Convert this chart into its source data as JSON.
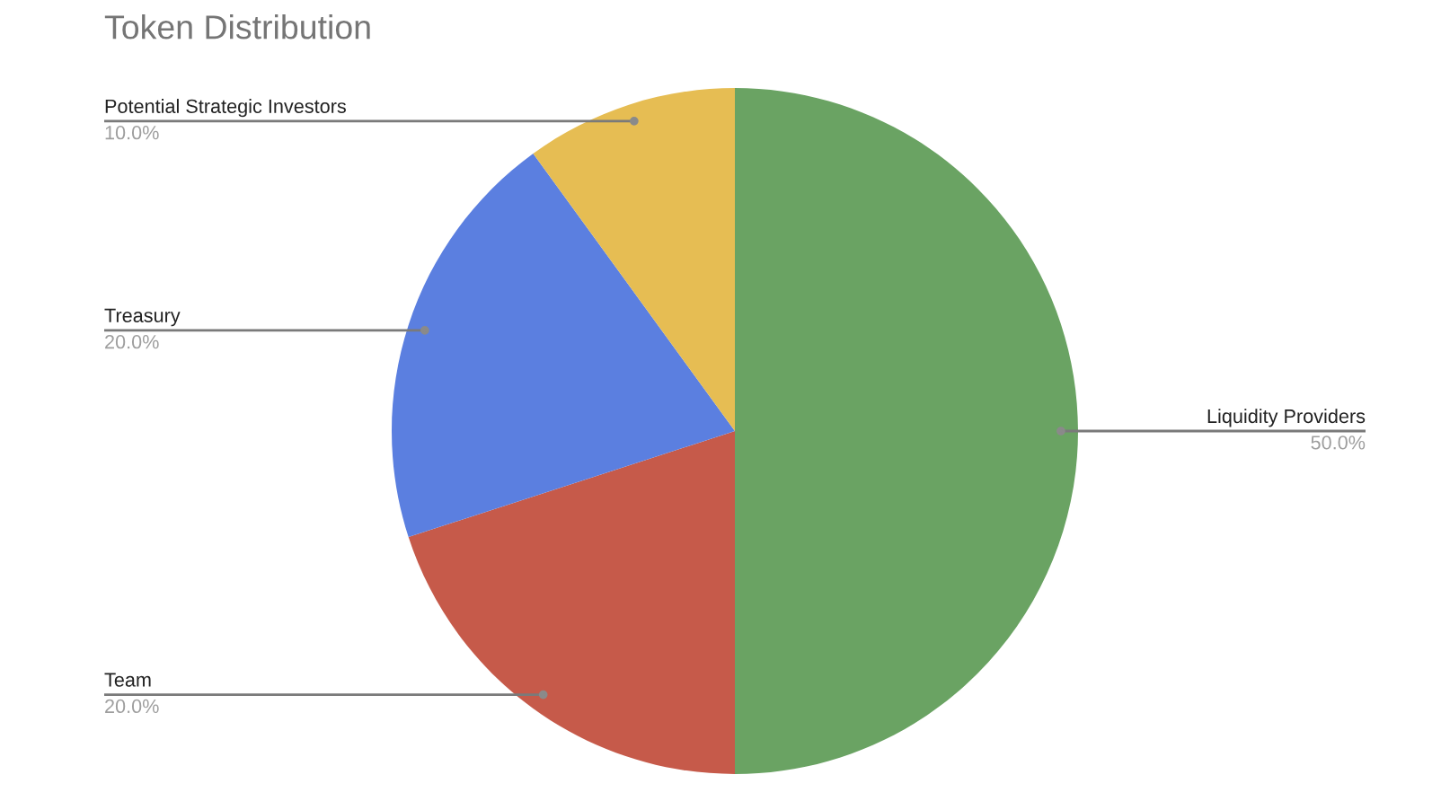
{
  "chart_data": {
    "type": "pie",
    "title": "Token Distribution",
    "categories": [
      "Liquidity Providers",
      "Team",
      "Treasury",
      "Potential Strategic Investors"
    ],
    "values": [
      50,
      20,
      20,
      10
    ],
    "colors": [
      "#6aa363",
      "#c65a4a",
      "#5b7fe0",
      "#e6bd53"
    ],
    "value_labels": [
      "50.0%",
      "20.0%",
      "20.0%",
      "10.0%"
    ]
  }
}
